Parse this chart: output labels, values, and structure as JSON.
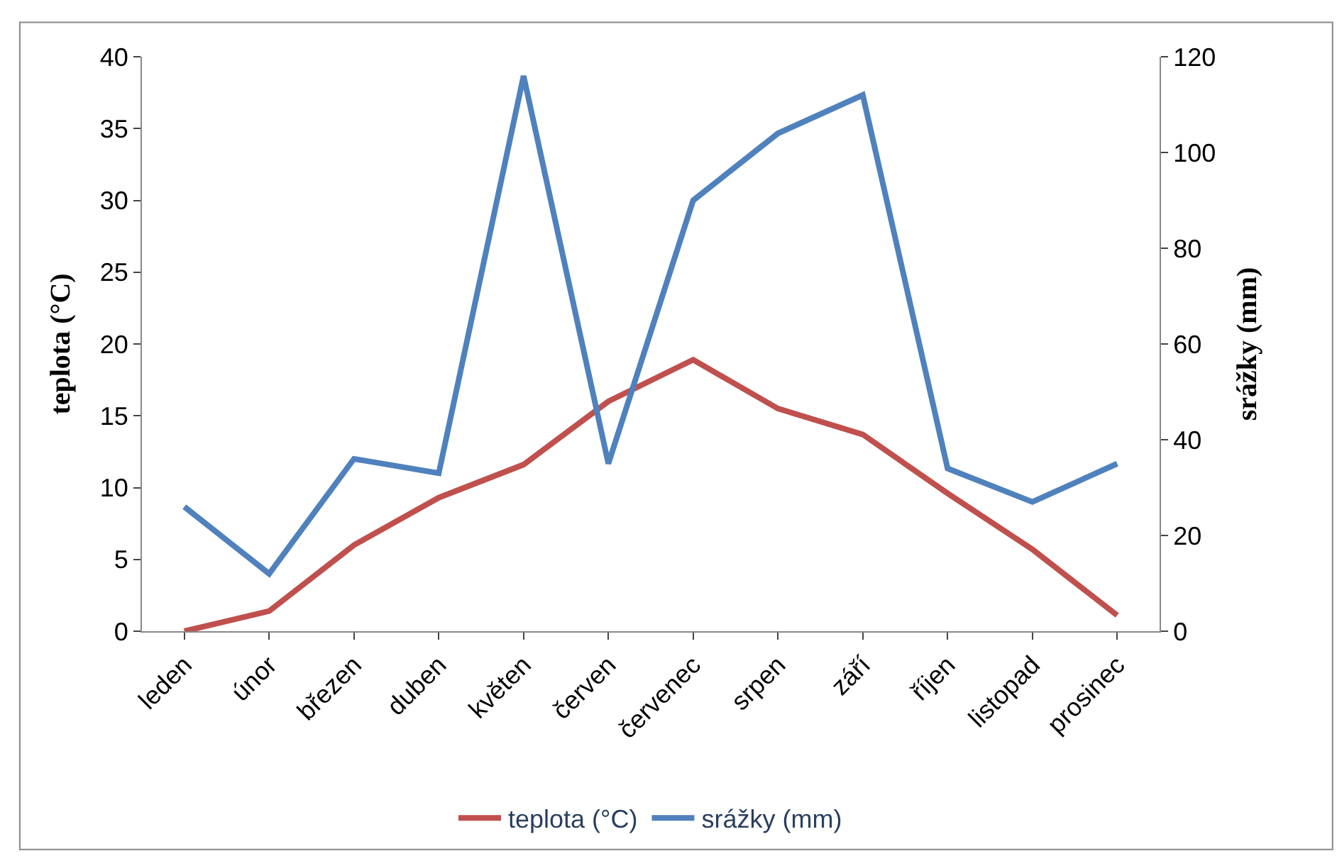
{
  "chart_data": {
    "type": "line",
    "ylabel": "teplota (°C)",
    "y2label": "srážky (mm)",
    "categories": [
      "leden",
      "únor",
      "březen",
      "duben",
      "květen",
      "červen",
      "červenec",
      "srpen",
      "září",
      "říjen",
      "listopad",
      "prosinec"
    ],
    "series": [
      {
        "name": "teplota (°C)",
        "color": "#c0504d",
        "values": [
          0.0,
          1.4,
          6.0,
          9.3,
          11.6,
          16.0,
          18.9,
          15.5,
          13.7,
          9.6,
          5.7,
          1.1
        ]
      },
      {
        "name": "srážky (mm)",
        "color": "#4f81bd",
        "axis": "y2",
        "values": [
          26,
          12,
          36,
          33,
          116,
          35,
          90,
          104,
          112,
          34,
          27,
          35
        ]
      }
    ],
    "ylim": [
      0,
      40
    ],
    "yticks": [
      0,
      5,
      10,
      15,
      20,
      25,
      30,
      35,
      40
    ],
    "y2lim": [
      0,
      120
    ],
    "y2ticks": [
      0,
      20,
      40,
      60,
      80,
      100,
      120
    ],
    "legend": "bottom",
    "marker": "none",
    "line_style": "solid"
  }
}
